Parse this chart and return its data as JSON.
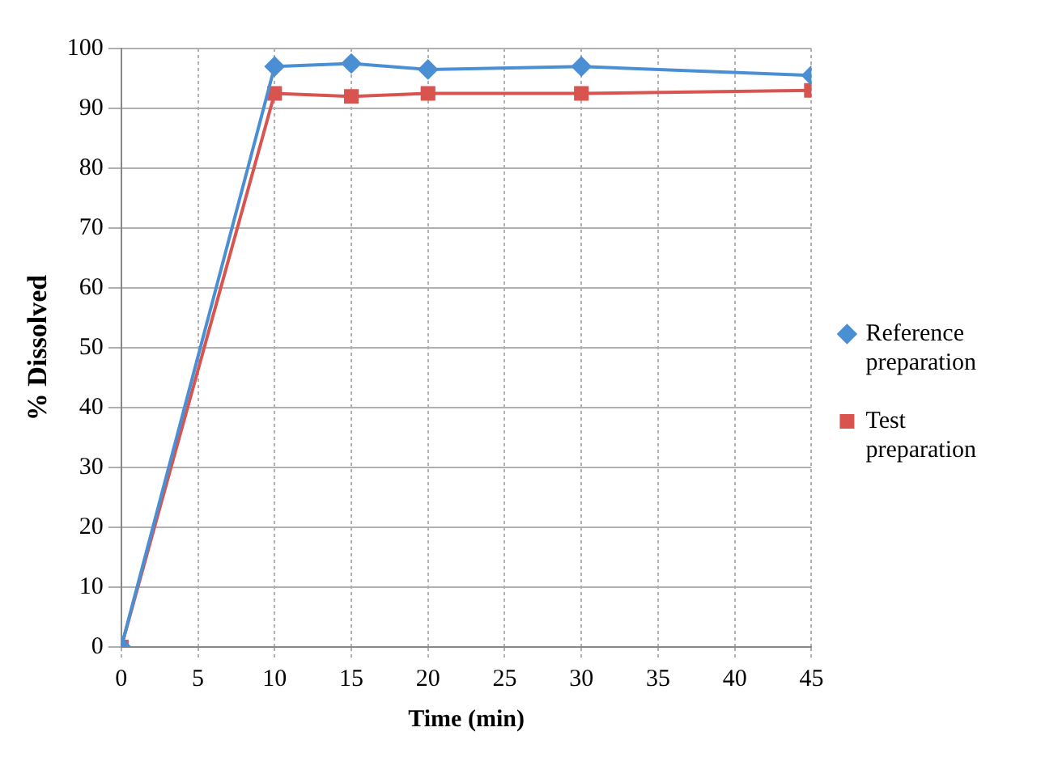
{
  "chart_data": {
    "type": "line",
    "xlabel": "Time (min)",
    "ylabel": "% Dissolved",
    "x": [
      0,
      10,
      15,
      20,
      30,
      45
    ],
    "series": [
      {
        "name": "Reference preparation",
        "color": "#4a8fd4",
        "marker": "diamond",
        "values": [
          0,
          97,
          97.5,
          96.5,
          97,
          95.5
        ]
      },
      {
        "name": "Test preparation",
        "color": "#d9534f",
        "marker": "square",
        "values": [
          0,
          92.5,
          92,
          92.5,
          92.5,
          93
        ]
      }
    ],
    "xlim": [
      0,
      45
    ],
    "xticks": [
      0,
      5,
      10,
      15,
      20,
      25,
      30,
      35,
      40,
      45
    ],
    "ylim": [
      0,
      100
    ],
    "yticks": [
      0,
      10,
      20,
      30,
      40,
      50,
      60,
      70,
      80,
      90,
      100
    ],
    "grid": true,
    "legend": "right",
    "line_style": "solid"
  }
}
